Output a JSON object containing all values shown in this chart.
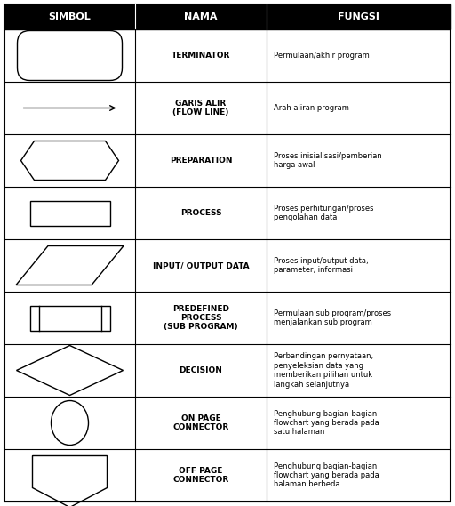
{
  "headers": [
    "SIMBOL",
    "NAMA",
    "FUNGSI"
  ],
  "header_bg": "#000000",
  "header_fg": "#ffffff",
  "rows": [
    {
      "name": "TERMINATOR",
      "fungsi": "Permulaan/akhir program"
    },
    {
      "name": "GARIS ALIR\n(FLOW LINE)",
      "fungsi": "Arah aliran program"
    },
    {
      "name": "PREPARATION",
      "fungsi": "Proses inisialisasi/pemberian\nharga awal"
    },
    {
      "name": "PROCESS",
      "fungsi": "Proses perhitungan/proses\npengolahan data"
    },
    {
      "name": "INPUT/ OUTPUT DATA",
      "fungsi": "Proses input/output data,\nparameter, informasi"
    },
    {
      "name": "PREDEFINED\nPROCESS\n(SUB PROGRAM)",
      "fungsi": "Permulaan sub program/proses\nmenjalankan sub program"
    },
    {
      "name": "DECISION",
      "fungsi": "Perbandingan pernyataan,\npenyeleksian data yang\nmemberikan pilihan untuk\nlangkah selanjutnya"
    },
    {
      "name": "ON PAGE\nCONNECTOR",
      "fungsi": "Penghubung bagian-bagian\nflowchart yang berada pada\nsatu halaman"
    },
    {
      "name": "OFF PAGE\nCONNECTOR",
      "fungsi": "Penghubung bagian-bagian\nflowchart yang berada pada\nhalaman berbeda"
    }
  ]
}
